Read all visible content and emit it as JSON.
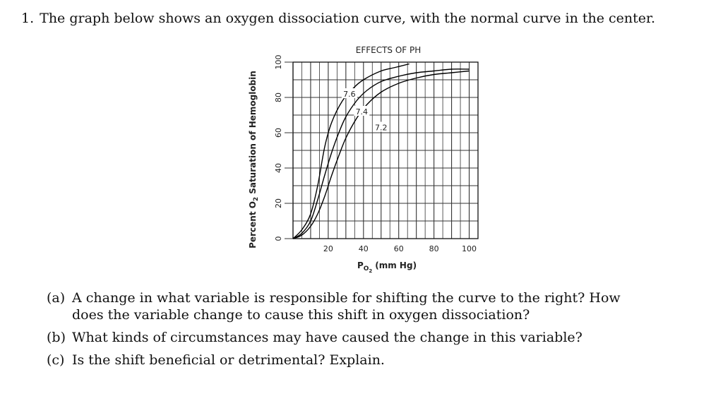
{
  "question": {
    "number": "1.",
    "text": "The graph below shows an oxygen dissociation curve, with the normal curve in the center."
  },
  "chart_data": {
    "type": "line",
    "title": "EFFECTS OF PH",
    "xlabel_main": "P",
    "xlabel_sub1": "O",
    "xlabel_sub2": "2",
    "xlabel_unit": "(mm Hg)",
    "ylabel_main": "Percent O",
    "ylabel_sub": "2",
    "ylabel_rest": "Saturation of Hemoglobin",
    "xlim": [
      0,
      105
    ],
    "ylim": [
      0,
      100
    ],
    "x_ticks": [
      20,
      40,
      60,
      80,
      100
    ],
    "y_ticks": [
      0,
      20,
      40,
      60,
      80,
      100
    ],
    "grid": true,
    "series": [
      {
        "name": "7.6",
        "points": [
          [
            0,
            0
          ],
          [
            5,
            5
          ],
          [
            10,
            14
          ],
          [
            14,
            30
          ],
          [
            18,
            52
          ],
          [
            22,
            66
          ],
          [
            28,
            78
          ],
          [
            34,
            85
          ],
          [
            40,
            90
          ],
          [
            50,
            95
          ],
          [
            58,
            97
          ],
          [
            66,
            99
          ]
        ]
      },
      {
        "name": "7.4",
        "points": [
          [
            0,
            0
          ],
          [
            5,
            3
          ],
          [
            10,
            10
          ],
          [
            14,
            22
          ],
          [
            18,
            36
          ],
          [
            22,
            49
          ],
          [
            26,
            60
          ],
          [
            30,
            69
          ],
          [
            36,
            78
          ],
          [
            42,
            84
          ],
          [
            50,
            89
          ],
          [
            60,
            92
          ],
          [
            70,
            94
          ],
          [
            80,
            95
          ],
          [
            90,
            96
          ],
          [
            100,
            96
          ]
        ]
      },
      {
        "name": "7.2",
        "points": [
          [
            0,
            0
          ],
          [
            5,
            2
          ],
          [
            10,
            7
          ],
          [
            14,
            14
          ],
          [
            18,
            24
          ],
          [
            22,
            36
          ],
          [
            26,
            47
          ],
          [
            30,
            57
          ],
          [
            36,
            68
          ],
          [
            42,
            76
          ],
          [
            50,
            83
          ],
          [
            60,
            88
          ],
          [
            70,
            91
          ],
          [
            80,
            93
          ],
          [
            90,
            94
          ],
          [
            100,
            95
          ]
        ]
      }
    ],
    "annotations": [
      {
        "text": "7.6",
        "x": 32,
        "y": 82
      },
      {
        "text": "7.4",
        "x": 39,
        "y": 72
      },
      {
        "text": "7.2",
        "x": 50,
        "y": 63
      }
    ]
  },
  "subquestions": [
    {
      "label": "(a)",
      "text": "A change in what variable is responsible for shifting the curve to the right? How does the variable change to cause this shift in oxygen dissociation?"
    },
    {
      "label": "(b)",
      "text": "What kinds of circumstances may have caused the change in this variable?"
    },
    {
      "label": "(c)",
      "text": "Is the shift beneficial or detrimental? Explain."
    }
  ]
}
